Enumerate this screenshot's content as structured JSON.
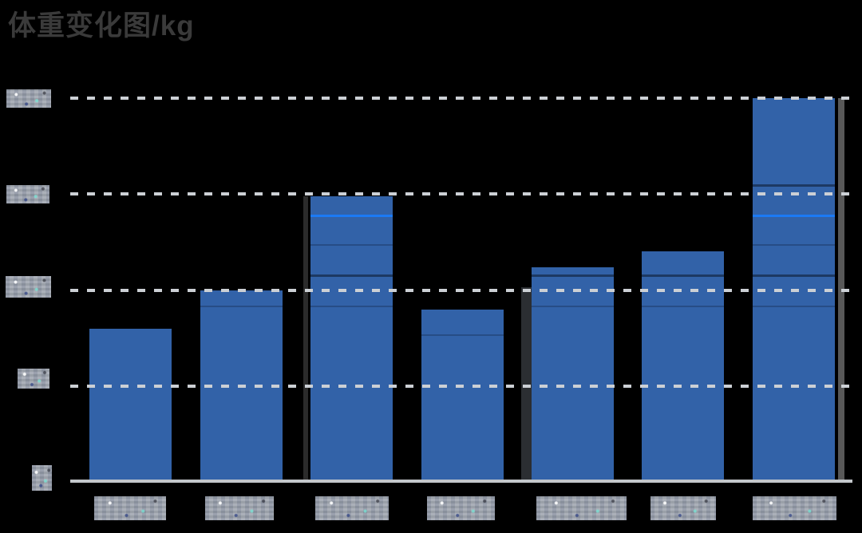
{
  "title": {
    "text": "体重变化图/kg"
  },
  "colors": {
    "background": "#000000",
    "bar": "#3262a8",
    "bright_divider_line": "#1b7af5",
    "gridline": "#ccd0d5",
    "axis": "#c3c7cb",
    "mosaic_label": "#9aa0a9",
    "title_text": "#3a3a3a"
  },
  "chart_data": {
    "type": "bar",
    "title": "体重变化图/kg",
    "categories": [
      "",
      "",
      "",
      "",
      "",
      "",
      ""
    ],
    "values": [
      80,
      100,
      149,
      90,
      112,
      120,
      200
    ],
    "xlabel": "",
    "ylabel": "",
    "ylim": [
      0,
      200
    ],
    "yticks": [
      0,
      50,
      100,
      150,
      200
    ],
    "grid": "horizontal-dashed",
    "legend": "none",
    "labels_redacted": true,
    "redaction_note": "All x-axis and y-axis tick labels appear as pixelated mosaic blocks in the screenshot; y-tick values inferred from label widths and even gridline spacing.",
    "internal_dividers": [
      {
        "bar": 1,
        "value": 91,
        "style": "faint"
      },
      {
        "bar": 2,
        "value": 138,
        "style": "bright"
      },
      {
        "bar": 2,
        "value": 123,
        "style": "faint"
      },
      {
        "bar": 2,
        "value": 107,
        "style": "dark"
      },
      {
        "bar": 2,
        "value": 91,
        "style": "faint"
      },
      {
        "bar": 3,
        "value": 76,
        "style": "faint"
      },
      {
        "bar": 4,
        "value": 107,
        "style": "dark"
      },
      {
        "bar": 4,
        "value": 91,
        "style": "faint"
      },
      {
        "bar": 5,
        "value": 107,
        "style": "dark"
      },
      {
        "bar": 5,
        "value": 91,
        "style": "faint"
      },
      {
        "bar": 6,
        "value": 154,
        "style": "dark"
      },
      {
        "bar": 6,
        "value": 138,
        "style": "bright"
      },
      {
        "bar": 6,
        "value": 123,
        "style": "faint"
      },
      {
        "bar": 6,
        "value": 107,
        "style": "dark"
      },
      {
        "bar": 6,
        "value": 91,
        "style": "faint"
      }
    ]
  }
}
